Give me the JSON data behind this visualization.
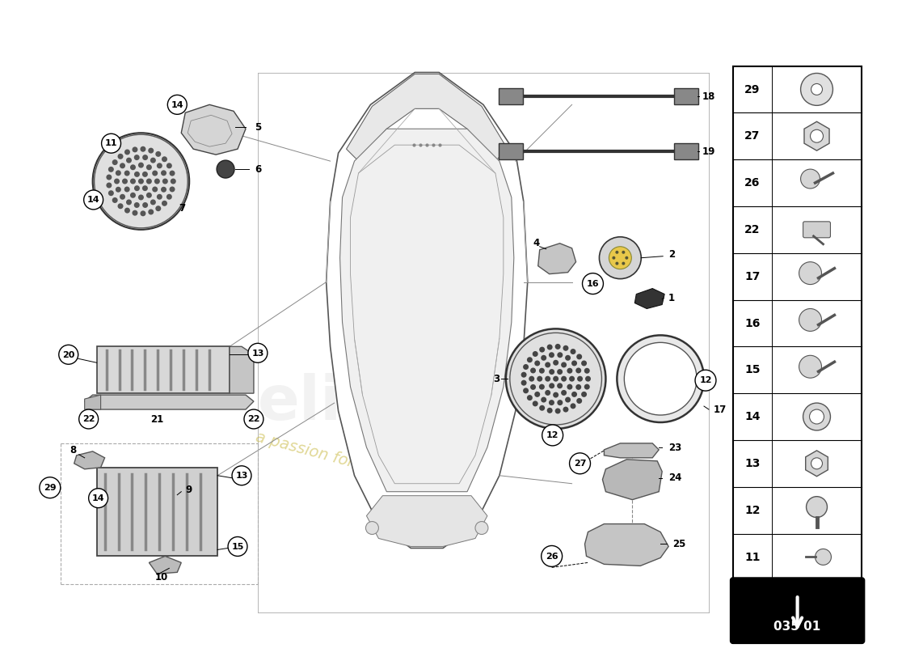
{
  "bg_color": "#ffffff",
  "fig_width": 11.0,
  "fig_height": 8.0,
  "right_panel_numbers": [
    29,
    27,
    26,
    22,
    17,
    16,
    15,
    14,
    13,
    12,
    11
  ],
  "page_ref": "035 01",
  "watermark_text": "eliteparts",
  "watermark_sub": "a passion for parts since 1985"
}
